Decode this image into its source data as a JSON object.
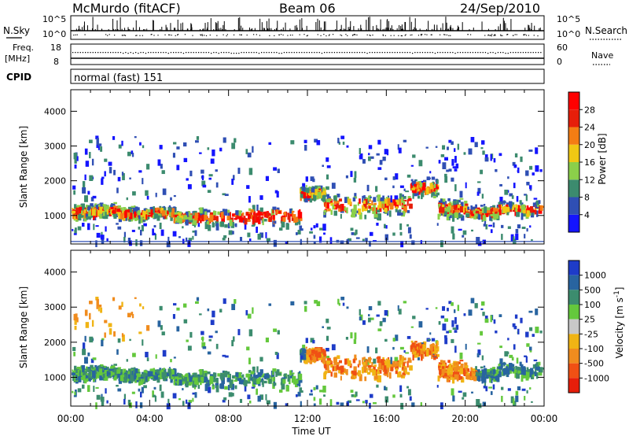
{
  "header": {
    "station": "McMurdo (fitACF)",
    "beam": "Beam 06",
    "date": "24/Sep/2010"
  },
  "noise_panel": {
    "left_label": "N.Sky",
    "right_label": "N.Search",
    "left_ticks": [
      "10^5",
      "10^0"
    ],
    "right_ticks": [
      "10^5",
      "10^0"
    ]
  },
  "freq_panel": {
    "left_label_1": "Freq.",
    "left_label_2": "[MHz]",
    "left_ticks": [
      "18",
      "8"
    ],
    "right_label": "Nave",
    "right_ticks": [
      "60",
      "0"
    ]
  },
  "cpid": {
    "label": "CPID",
    "value": "normal (fast) 151"
  },
  "chart_data": [
    {
      "type": "heatmap",
      "parameter": "Power",
      "xlabel": "Time UT",
      "ylabel": "Slant Range [km]",
      "colorbar_label": "Power [dB]",
      "x_ticks": [
        "00:00",
        "04:00",
        "08:00",
        "12:00",
        "16:00",
        "20:00",
        "00:00"
      ],
      "xlim_hours": [
        0,
        24
      ],
      "y_ticks": [
        1000,
        2000,
        3000,
        4000
      ],
      "ylim": [
        180,
        4620
      ],
      "colorbar_ticks": [
        4,
        8,
        12,
        16,
        20,
        24,
        28
      ],
      "colorbar_range": [
        0,
        32
      ],
      "colors": [
        "#1414ff",
        "#2f4fb4",
        "#3c8b6e",
        "#8bd04a",
        "#f0c814",
        "#f47d14",
        "#e61e0a",
        "#ff0000"
      ]
    },
    {
      "type": "heatmap",
      "parameter": "Velocity",
      "xlabel": "Time UT",
      "ylabel": "Slant Range [km]",
      "colorbar_label": "Velocity [m s^-1]",
      "x_ticks": [
        "00:00",
        "04:00",
        "08:00",
        "12:00",
        "16:00",
        "20:00",
        "00:00"
      ],
      "xlim_hours": [
        0,
        24
      ],
      "y_ticks": [
        1000,
        2000,
        3000,
        4000
      ],
      "ylim": [
        180,
        4620
      ],
      "colorbar_ticks": [
        "1000",
        "500",
        "100",
        "25",
        "-25",
        "-100",
        "-500",
        "-1000"
      ],
      "colors": [
        "#1e3cc8",
        "#2864a0",
        "#3c8c6e",
        "#64c83c",
        "#c8c8c8",
        "#f0b414",
        "#f08c1e",
        "#f05014",
        "#e61e0a"
      ]
    }
  ],
  "axis": {
    "xlabel": "Time UT",
    "ylabel": "Slant Range [km]",
    "x_ticks": [
      "00:00",
      "04:00",
      "08:00",
      "12:00",
      "16:00",
      "20:00",
      "00:00"
    ]
  }
}
